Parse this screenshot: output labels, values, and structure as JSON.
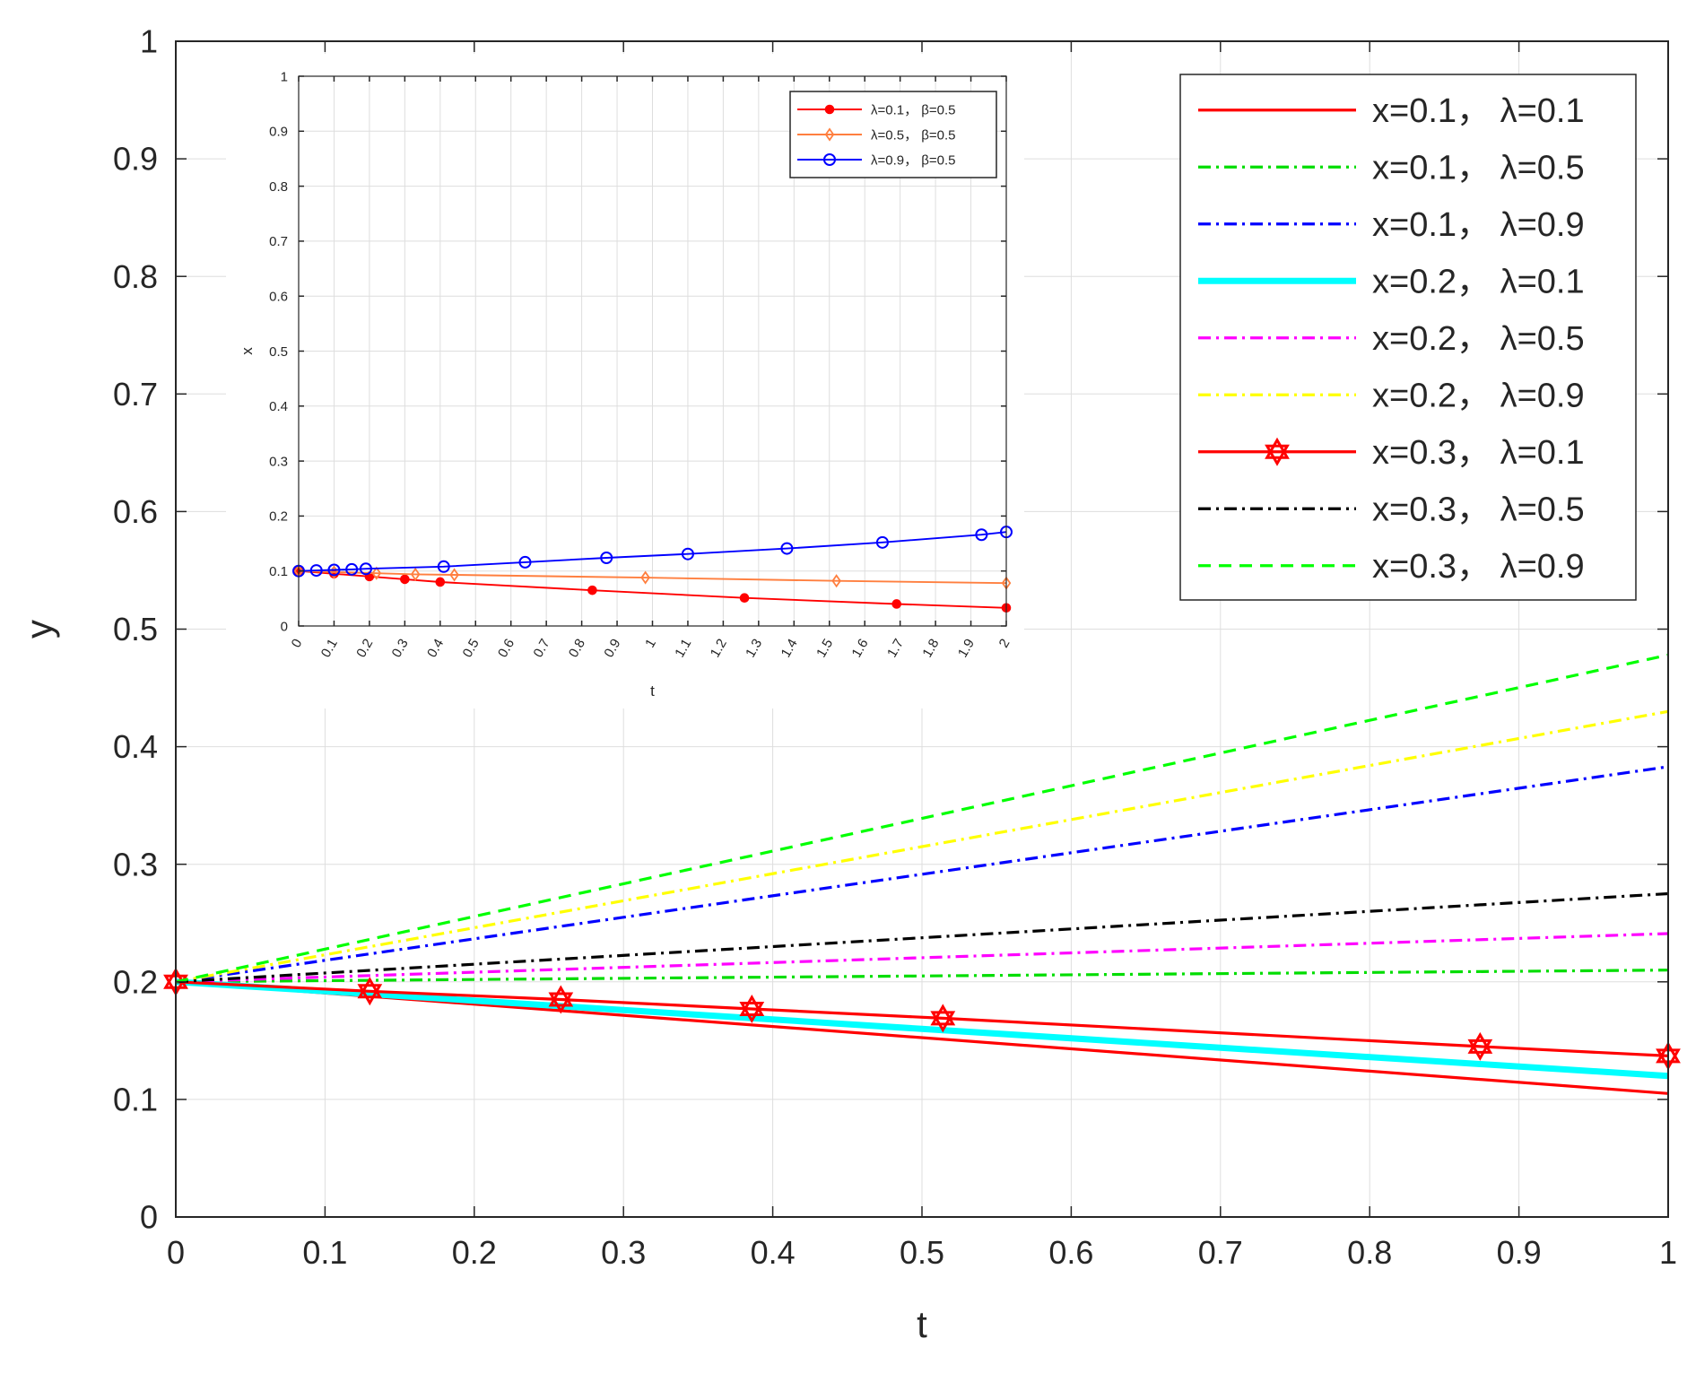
{
  "chart_data": [
    {
      "type": "line",
      "xlabel": "t",
      "ylabel": "y",
      "xlim": [
        0,
        1
      ],
      "ylim": [
        0,
        1
      ],
      "xticks": [
        "0",
        "0.1",
        "0.2",
        "0.3",
        "0.4",
        "0.5",
        "0.6",
        "0.7",
        "0.8",
        "0.9",
        "1"
      ],
      "yticks": [
        "0",
        "0.1",
        "0.2",
        "0.3",
        "0.4",
        "0.5",
        "0.6",
        "0.7",
        "0.8",
        "0.9",
        "1"
      ],
      "grid": true,
      "legend_position": "top-right",
      "series": [
        {
          "name": "x=0.1， λ=0.1",
          "color": "#ff0000",
          "style": "solid",
          "marker": "none",
          "x": [
            0,
            1
          ],
          "y": [
            0.2,
            0.105
          ]
        },
        {
          "name": "x=0.1， λ=0.5",
          "color": "#00dd00",
          "style": "dashdot",
          "marker": "none",
          "x": [
            0,
            1
          ],
          "y": [
            0.2,
            0.21
          ]
        },
        {
          "name": "x=0.1， λ=0.9",
          "color": "#0000ff",
          "style": "dashdot",
          "marker": "none",
          "x": [
            0,
            1
          ],
          "y": [
            0.2,
            0.383
          ]
        },
        {
          "name": "x=0.2， λ=0.1",
          "color": "#00ffff",
          "style": "solid-thick",
          "marker": "none",
          "x": [
            0,
            1
          ],
          "y": [
            0.2,
            0.12
          ]
        },
        {
          "name": "x=0.2， λ=0.5",
          "color": "#ff00ff",
          "style": "dashdot",
          "marker": "none",
          "x": [
            0,
            1
          ],
          "y": [
            0.2,
            0.241
          ]
        },
        {
          "name": "x=0.2， λ=0.9",
          "color": "#ffff00",
          "style": "dashdot",
          "marker": "none",
          "x": [
            0,
            1
          ],
          "y": [
            0.2,
            0.43
          ]
        },
        {
          "name": "x=0.3， λ=0.1",
          "color": "#ff0000",
          "style": "solid",
          "marker": "hexagram",
          "x": [
            0,
            0.13,
            0.258,
            0.386,
            0.514,
            0.874,
            1
          ],
          "y": [
            0.2,
            0.192,
            0.185,
            0.177,
            0.169,
            0.145,
            0.137
          ]
        },
        {
          "name": "x=0.3， λ=0.5",
          "color": "#000000",
          "style": "dashdot",
          "marker": "none",
          "x": [
            0,
            1
          ],
          "y": [
            0.2,
            0.275
          ]
        },
        {
          "name": "x=0.3， λ=0.9",
          "color": "#00ff00",
          "style": "dashed",
          "marker": "none",
          "x": [
            0,
            1
          ],
          "y": [
            0.2,
            0.478
          ]
        }
      ]
    },
    {
      "type": "line",
      "xlabel": "t",
      "ylabel": "x",
      "xlim": [
        0,
        2
      ],
      "ylim": [
        0,
        1
      ],
      "xticks": [
        "0",
        "0.1",
        "0.2",
        "0.3",
        "0.4",
        "0.5",
        "0.6",
        "0.7",
        "0.8",
        "0.9",
        "1",
        "1.1",
        "1.2",
        "1.3",
        "1.4",
        "1.5",
        "1.6",
        "1.7",
        "1.8",
        "1.9",
        "2"
      ],
      "yticks": [
        "0",
        "0.1",
        "0.2",
        "0.3",
        "0.4",
        "0.5",
        "0.6",
        "0.7",
        "0.8",
        "0.9",
        "1"
      ],
      "grid": true,
      "legend_position": "top-right",
      "series": [
        {
          "name": "λ=0.1， β=0.5",
          "color": "#ff0000",
          "style": "solid",
          "marker": "asterisk",
          "x": [
            0,
            0.1,
            0.2,
            0.3,
            0.4,
            0.83,
            1.26,
            1.69,
            2
          ],
          "y": [
            0.1,
            0.095,
            0.09,
            0.085,
            0.08,
            0.065,
            0.051,
            0.04,
            0.033
          ]
        },
        {
          "name": "λ=0.5， β=0.5",
          "color": "#ff7f3f",
          "style": "solid",
          "marker": "diamond",
          "x": [
            0,
            0.1,
            0.22,
            0.33,
            0.44,
            0.98,
            1.52,
            2
          ],
          "y": [
            0.1,
            0.098,
            0.096,
            0.094,
            0.093,
            0.088,
            0.082,
            0.078
          ]
        },
        {
          "name": "λ=0.9， β=0.5",
          "color": "#0000ff",
          "style": "solid",
          "marker": "circle",
          "x": [
            0,
            0.05,
            0.1,
            0.15,
            0.19,
            0.41,
            0.64,
            0.87,
            1.1,
            1.38,
            1.65,
            1.93,
            2
          ],
          "y": [
            0.1,
            0.101,
            0.102,
            0.103,
            0.104,
            0.108,
            0.116,
            0.124,
            0.131,
            0.141,
            0.152,
            0.166,
            0.171
          ]
        }
      ]
    }
  ]
}
